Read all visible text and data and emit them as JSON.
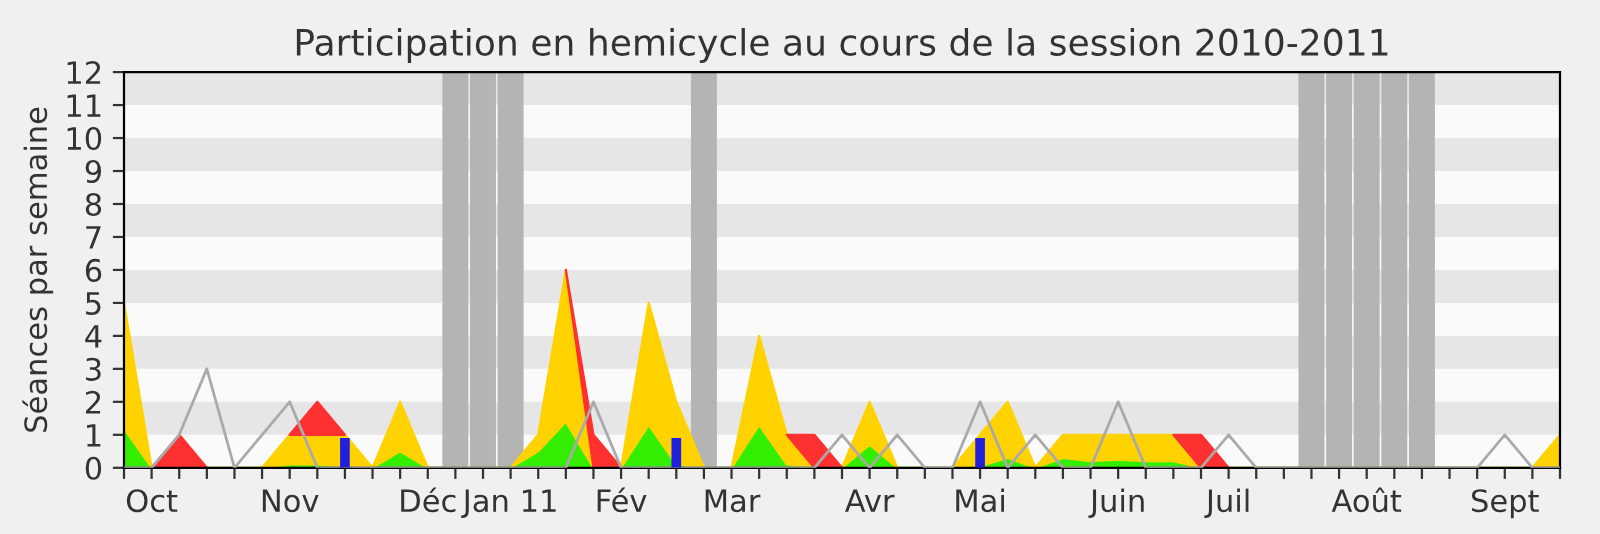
{
  "chart_data": {
    "type": "area",
    "title": "Participation en hemicycle au cours de la session 2010-2011",
    "ylabel": "Séances par semaine",
    "categories": [
      null,
      "Oct",
      null,
      null,
      null,
      null,
      "Nov",
      null,
      null,
      null,
      null,
      "Déc",
      null,
      null,
      "Jan 11",
      null,
      null,
      null,
      "Fév",
      null,
      null,
      null,
      "Mar",
      null,
      null,
      null,
      null,
      "Avr",
      null,
      null,
      null,
      "Mai",
      null,
      null,
      null,
      null,
      "Juin",
      null,
      null,
      null,
      "Juil",
      null,
      null,
      null,
      null,
      "Août",
      null,
      null,
      null,
      null,
      "Sept",
      null,
      null
    ],
    "stacked": true,
    "ylim": [
      0,
      12
    ],
    "yticks": [
      0,
      1,
      2,
      3,
      4,
      5,
      6,
      7,
      8,
      9,
      10,
      11,
      12
    ],
    "bands": [
      {
        "axis": "y",
        "from": 1,
        "to": 2,
        "color": "#e6e6e6"
      },
      {
        "axis": "y",
        "from": 3,
        "to": 4,
        "color": "#e6e6e6"
      },
      {
        "axis": "y",
        "from": 5,
        "to": 6,
        "color": "#e6e6e6"
      },
      {
        "axis": "y",
        "from": 7,
        "to": 8,
        "color": "#e6e6e6"
      },
      {
        "axis": "y",
        "from": 9,
        "to": 10,
        "color": "#e6e6e6"
      },
      {
        "axis": "y",
        "from": 11,
        "to": 12,
        "color": "#e6e6e6"
      }
    ],
    "series": [
      {
        "type": "bar",
        "color": "#b4b4b4",
        "values": [
          null,
          null,
          null,
          null,
          null,
          null,
          null,
          null,
          null,
          null,
          null,
          null,
          12,
          12,
          12,
          null,
          null,
          null,
          null,
          null,
          null,
          12,
          null,
          null,
          null,
          null,
          null,
          null,
          null,
          null,
          null,
          null,
          null,
          null,
          null,
          null,
          null,
          null,
          null,
          null,
          null,
          null,
          null,
          12,
          12,
          12,
          12,
          12,
          null,
          null,
          null,
          null,
          null
        ]
      },
      {
        "color": "#33ee00",
        "values": [
          1.2,
          0,
          0,
          0,
          0,
          0,
          0.1,
          0.1,
          0.05,
          0,
          0.5,
          0,
          0,
          0,
          0,
          0.5,
          1.4,
          0,
          0,
          1.3,
          0.1,
          0,
          0,
          1.3,
          0.1,
          0,
          0,
          0.7,
          0,
          0,
          0,
          0.05,
          0.3,
          0,
          0.3,
          0.2,
          0.25,
          0.2,
          0.2,
          0,
          0,
          0,
          0,
          0,
          0,
          0,
          0,
          0,
          0,
          0,
          0,
          0,
          0
        ]
      },
      {
        "color": "#ffd200",
        "values": [
          3.8,
          0,
          0,
          0,
          0,
          0,
          0.9,
          0.9,
          0.95,
          0,
          1.5,
          0,
          0,
          0,
          0,
          0.5,
          4.6,
          0,
          0,
          3.7,
          1.9,
          0,
          0,
          2.7,
          0.9,
          0,
          0,
          1.3,
          0,
          0,
          0,
          0.95,
          1.7,
          0,
          0.7,
          0.8,
          0.75,
          0.8,
          0.8,
          0,
          0,
          0,
          0,
          0,
          0,
          0,
          0,
          0,
          0,
          0,
          0,
          0,
          1
        ]
      },
      {
        "color": "#ff3030",
        "values": [
          null,
          0,
          1,
          0,
          null,
          null,
          0,
          1,
          0,
          null,
          null,
          null,
          null,
          null,
          null,
          null,
          0,
          1,
          0,
          null,
          null,
          null,
          null,
          null,
          0,
          1,
          0,
          null,
          null,
          null,
          null,
          null,
          null,
          null,
          null,
          null,
          null,
          null,
          0,
          1,
          0,
          null,
          null,
          null,
          null,
          null,
          null,
          null,
          null,
          null,
          null,
          null,
          null
        ]
      },
      {
        "type": "line",
        "color": "#aaaaaa",
        "values": [
          0,
          0,
          1,
          3,
          0,
          1,
          2,
          0,
          0,
          0,
          0,
          0,
          0,
          0,
          0,
          0,
          0,
          2,
          0,
          0,
          0,
          0,
          0,
          0,
          0,
          0,
          1,
          0,
          1,
          0,
          0,
          2,
          0,
          1,
          0,
          0,
          2,
          0,
          0,
          0,
          1,
          0,
          0,
          0,
          0,
          0,
          0,
          0,
          0,
          0,
          1,
          0,
          0
        ]
      },
      {
        "type": "bar",
        "color": "#2020dd",
        "values": [
          null,
          null,
          null,
          null,
          null,
          null,
          null,
          null,
          0.9,
          null,
          null,
          null,
          null,
          null,
          null,
          null,
          null,
          null,
          null,
          null,
          0.9,
          null,
          null,
          null,
          null,
          null,
          null,
          null,
          null,
          null,
          null,
          0.9,
          null,
          null,
          null,
          null,
          null,
          null,
          null,
          null,
          null,
          null,
          null,
          null,
          null,
          null,
          null,
          null,
          null,
          null,
          null,
          null,
          null
        ]
      }
    ]
  }
}
